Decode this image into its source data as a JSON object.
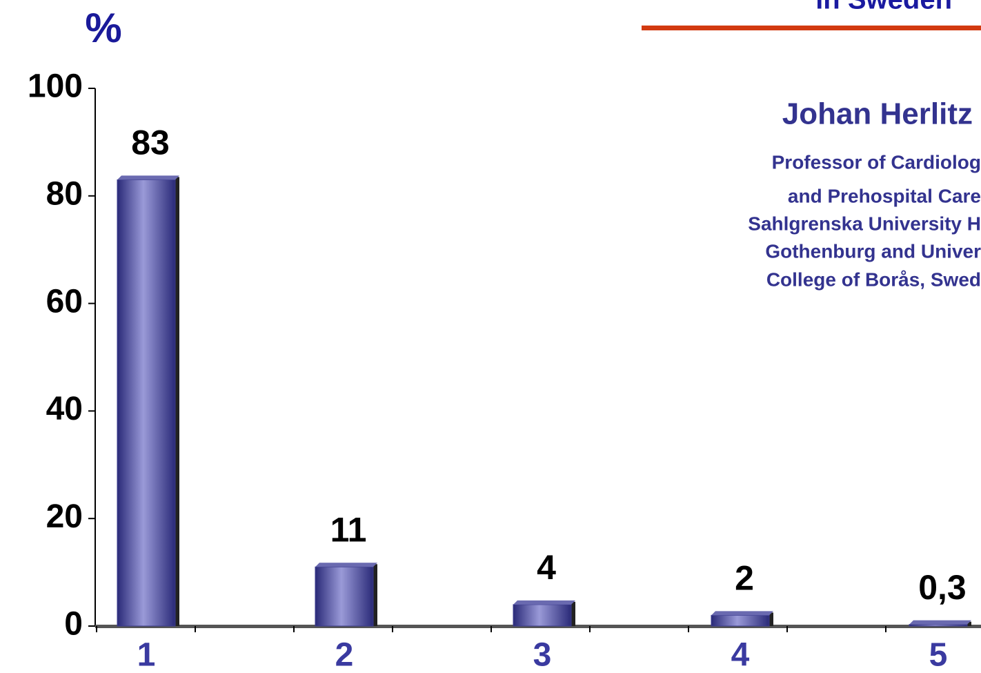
{
  "chart_data": {
    "type": "bar",
    "title": "in Sweden",
    "ylabel": "%",
    "author": "Johan Herlitz",
    "affiliation": [
      "Professor of Cardiolog",
      "and Prehospital Care",
      "Sahlgrenska University H",
      "Gothenburg and Univer",
      "College of Borås, Swed"
    ],
    "categories": [
      "1",
      "2",
      "3",
      "4",
      "5"
    ],
    "values": [
      83,
      11,
      4,
      2,
      0.3
    ],
    "value_labels": [
      "83",
      "11",
      "4",
      "2",
      "0,3"
    ],
    "color": "#3a3a8c",
    "ylim": [
      0,
      100
    ],
    "yticks": [
      0,
      20,
      40,
      60,
      80,
      100
    ],
    "grid": false
  }
}
